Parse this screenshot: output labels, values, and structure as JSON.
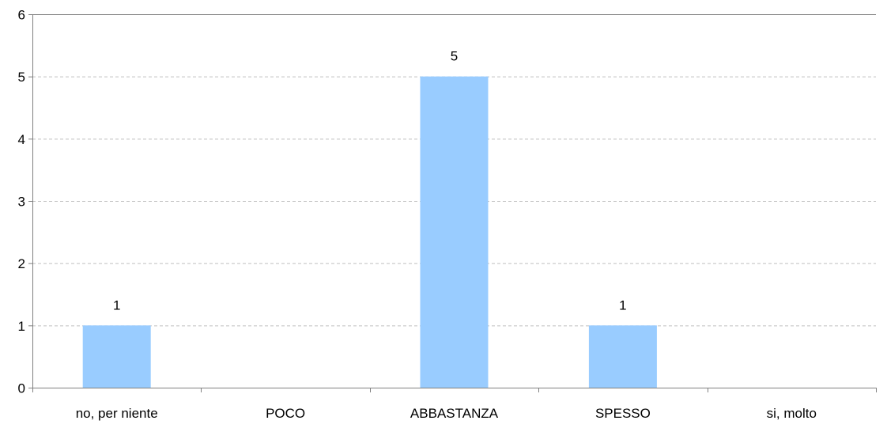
{
  "chart_data": {
    "type": "bar",
    "title": "",
    "xlabel": "",
    "ylabel": "",
    "categories": [
      "no, per niente",
      "POCO",
      "ABBASTANZA",
      "SPESSO",
      "si, molto"
    ],
    "series": [
      {
        "values": [
          1,
          0,
          5,
          1,
          0
        ]
      }
    ],
    "data_labels": [
      "1",
      "",
      "5",
      "1",
      ""
    ],
    "ylim": [
      0,
      6
    ],
    "yticks": [
      "0",
      "1",
      "2",
      "3",
      "4",
      "5",
      "6"
    ],
    "grid": "horizontal dashed",
    "legend": "none",
    "colors": {
      "bar": "#99ccff",
      "grid": "#c0c0c0",
      "axis": "#808080"
    }
  }
}
